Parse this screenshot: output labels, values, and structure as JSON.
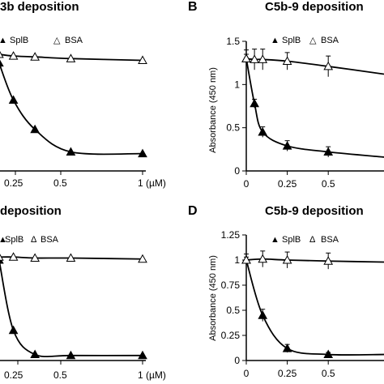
{
  "chart_data": [
    {
      "panel": "",
      "type": "line",
      "title": "3b deposition",
      "xlabel": "",
      "ylabel": "",
      "x_tick_labels": [
        "0.25",
        "0.5",
        "1 (µM)"
      ],
      "legend": [
        {
          "marker": "filled-triangle",
          "label": "SplB"
        },
        {
          "marker": "open-triangle",
          "label": "BSA"
        }
      ],
      "legend_position": "top",
      "series": [
        {
          "marker": "filled-triangle",
          "x": [
            0.0,
            0.1,
            0.25,
            0.5,
            1.0
          ],
          "y": [
            1.25,
            0.82,
            0.48,
            0.22,
            0.2
          ]
        },
        {
          "marker": "open-triangle",
          "x": [
            0.0,
            0.1,
            0.25,
            0.5,
            1.0
          ],
          "y": [
            1.35,
            1.33,
            1.32,
            1.3,
            1.28
          ]
        }
      ]
    },
    {
      "panel": "B",
      "type": "line",
      "title": "C5b-9 deposition",
      "xlabel": "",
      "ylabel": "Absorbance (450 nm)",
      "x_tick_labels": [
        "0",
        "0.25",
        "0.5"
      ],
      "y_tick_labels": [
        "0",
        "0.5",
        "1",
        "1.5"
      ],
      "xlim": [
        0,
        0.84
      ],
      "ylim": [
        0,
        1.5
      ],
      "legend": [
        {
          "marker": "filled-triangle",
          "label": "SplB"
        },
        {
          "marker": "open-triangle",
          "label": "BSA"
        }
      ],
      "legend_position": "top",
      "series": [
        {
          "marker": "filled-triangle",
          "x": [
            0,
            0.05,
            0.1,
            0.25,
            0.5,
            0.84
          ],
          "y": [
            1.3,
            0.78,
            0.45,
            0.29,
            0.22,
            0.16
          ],
          "error": [
            0.05,
            0.05,
            0.06,
            0.06,
            0.06,
            0
          ]
        },
        {
          "marker": "open-triangle",
          "x": [
            0,
            0.05,
            0.1,
            0.25,
            0.5,
            0.84
          ],
          "y": [
            1.3,
            1.29,
            1.29,
            1.27,
            1.21,
            1.12
          ],
          "error": [
            0.1,
            0.12,
            0.12,
            0.1,
            0.12,
            0
          ]
        }
      ]
    },
    {
      "panel": "",
      "type": "line",
      "title": "deposition",
      "xlabel": "",
      "ylabel": "",
      "x_tick_labels": [
        "0.25",
        "0.5",
        "1 (µM)"
      ],
      "legend": [
        {
          "marker": "filled-triangle",
          "label": "SplB"
        },
        {
          "marker": "open-triangle",
          "label": "BSA"
        }
      ],
      "legend_position": "top",
      "series": [
        {
          "marker": "filled-triangle",
          "x": [
            0.0,
            0.1,
            0.25,
            0.5,
            1.0
          ],
          "y": [
            1.0,
            0.3,
            0.06,
            0.05,
            0.05
          ]
        },
        {
          "marker": "open-triangle",
          "x": [
            0.0,
            0.1,
            0.25,
            0.5,
            1.0
          ],
          "y": [
            1.03,
            1.03,
            1.02,
            1.02,
            1.01
          ]
        }
      ]
    },
    {
      "panel": "D",
      "type": "line",
      "title": "C5b-9 deposition",
      "xlabel": "",
      "ylabel": "Absorbance (450 nm)",
      "x_tick_labels": [
        "0",
        "0.25",
        "0.5"
      ],
      "y_tick_labels": [
        "0",
        "0.25",
        "0.5",
        "0.75",
        "1",
        "1.25"
      ],
      "xlim": [
        0,
        0.84
      ],
      "ylim": [
        0,
        1.25
      ],
      "legend": [
        {
          "marker": "filled-triangle",
          "label": "SplB"
        },
        {
          "marker": "open-triangle",
          "label": "BSA"
        }
      ],
      "legend_position": "top",
      "series": [
        {
          "marker": "filled-triangle",
          "x": [
            0,
            0.1,
            0.25,
            0.5,
            0.84
          ],
          "y": [
            1.0,
            0.45,
            0.12,
            0.06,
            0.06
          ],
          "error": [
            0.03,
            0.06,
            0.04,
            0.02,
            0
          ]
        },
        {
          "marker": "open-triangle",
          "x": [
            0,
            0.1,
            0.25,
            0.5,
            0.84
          ],
          "y": [
            1.0,
            1.01,
            1.0,
            0.99,
            0.98
          ],
          "error": [
            0.06,
            0.08,
            0.08,
            0.08,
            0
          ]
        }
      ]
    }
  ]
}
